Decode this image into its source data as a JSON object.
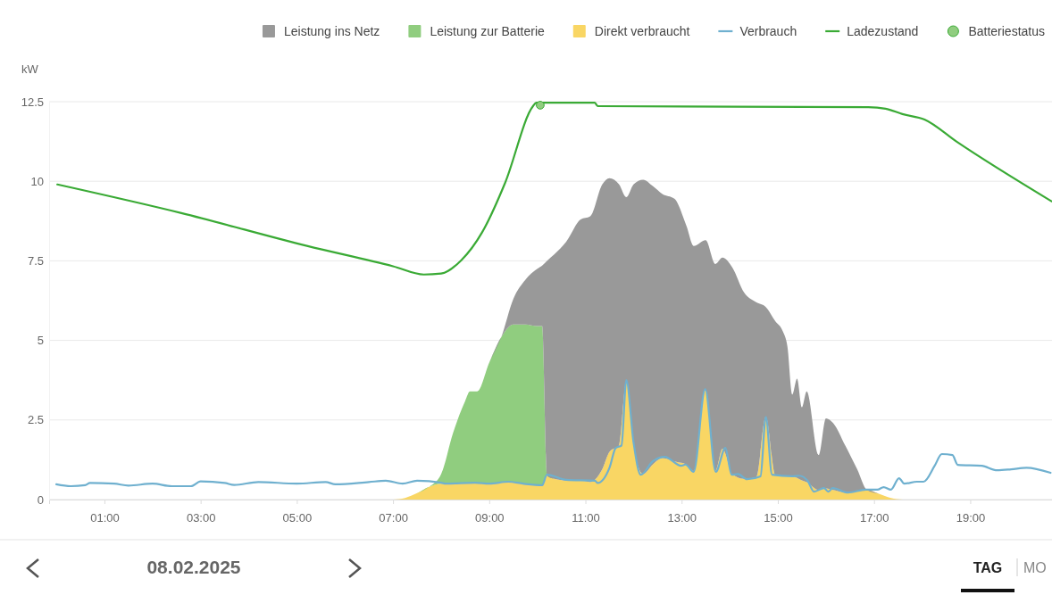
{
  "chart_data": {
    "type": "area",
    "ylabel": "kW",
    "stacked": true,
    "legend": "top right",
    "grid": "y",
    "xlim": [
      -0.15,
      20.7
    ],
    "xticks": [
      {
        "value": 1,
        "label": "01:00"
      },
      {
        "value": 3,
        "label": "03:00"
      },
      {
        "value": 5,
        "label": "05:00"
      },
      {
        "value": 7,
        "label": "07:00"
      },
      {
        "value": 9,
        "label": "09:00"
      },
      {
        "value": 11,
        "label": "11:00"
      },
      {
        "value": 13,
        "label": "13:00"
      },
      {
        "value": 15,
        "label": "15:00"
      },
      {
        "value": 17,
        "label": "17:00"
      },
      {
        "value": 19,
        "label": "19:00"
      }
    ],
    "ylim": [
      0,
      12.5
    ],
    "yticks": [
      0,
      2.5,
      5,
      7.5,
      10,
      12.5
    ],
    "x": [
      7.0,
      7.25,
      7.5,
      7.75,
      8.0,
      8.25,
      8.5,
      8.6,
      8.75,
      9.0,
      9.25,
      9.5,
      9.75,
      10.0,
      10.1,
      10.2,
      10.35,
      10.6,
      10.9,
      11.1,
      11.35,
      11.5,
      11.7,
      11.85,
      12.0,
      12.2,
      12.4,
      12.6,
      12.85,
      13.1,
      13.25,
      13.5,
      13.7,
      13.85,
      14.05,
      14.3,
      14.55,
      14.75,
      14.95,
      15.1,
      15.2,
      15.3,
      15.4,
      15.5,
      15.6,
      15.85,
      16.0,
      16.15,
      16.4,
      16.65,
      16.85,
      17.1,
      17.35,
      17.6
    ],
    "series": [
      {
        "name": "Direkt verbraucht",
        "color": "#f9d664",
        "values": [
          0,
          0.05,
          0.2,
          0.4,
          0.5,
          0.5,
          0.53,
          0.53,
          0.53,
          0.5,
          0.53,
          0.55,
          0.5,
          0.45,
          0.45,
          0.75,
          0.65,
          0.6,
          0.6,
          0.55,
          0.95,
          1.5,
          1.7,
          3.7,
          1.7,
          0.8,
          1.1,
          1.3,
          1.2,
          1.1,
          0.9,
          3.45,
          0.9,
          1.6,
          0.8,
          0.65,
          0.7,
          2.6,
          0.75,
          0.73,
          0.73,
          0.72,
          0.68,
          0.6,
          0.55,
          0.3,
          0.35,
          0.3,
          0.22,
          0.25,
          0.3,
          0.18,
          0.05,
          0
        ]
      },
      {
        "name": "Leistung zur Batterie",
        "color": "#90cd7f",
        "values": [
          0,
          0,
          0,
          0,
          0.3,
          1.6,
          2.57,
          2.87,
          2.87,
          3.8,
          4.57,
          4.95,
          5.0,
          5.0,
          5.0,
          0,
          0,
          0,
          0,
          0,
          0,
          0,
          0,
          0,
          0,
          0,
          0,
          0,
          0,
          0,
          0,
          0,
          0,
          0,
          0,
          0,
          0,
          0,
          0,
          0,
          0,
          0,
          0,
          0,
          0,
          0,
          0,
          0,
          0,
          0,
          0,
          0,
          0,
          0
        ]
      },
      {
        "name": "Leistung ins Netz",
        "color": "#999999",
        "values": [
          0,
          0,
          0,
          0,
          0,
          0,
          0,
          0,
          0,
          0,
          0,
          0.8,
          1.4,
          1.8,
          1.9,
          6.75,
          7.05,
          7.5,
          8.2,
          8.35,
          8.95,
          8.6,
          8.2,
          5.8,
          8.2,
          9.25,
          8.75,
          8.3,
          8.25,
          7.5,
          7.07,
          4.7,
          6.5,
          6.0,
          6.5,
          5.85,
          5.5,
          3.45,
          4.85,
          4.57,
          4.07,
          2.58,
          3.12,
          2.3,
          2.85,
          1.1,
          2.2,
          2.1,
          1.48,
          0.7,
          0,
          0,
          0,
          0
        ]
      },
      {
        "name": "Verbrauch",
        "type": "line",
        "color": "#6fb0cf",
        "x": [
          0.0,
          0.3,
          0.6,
          0.7,
          1.2,
          1.5,
          2.0,
          2.4,
          2.8,
          3.0,
          3.5,
          3.7,
          4.2,
          5.0,
          5.6,
          5.8,
          6.5,
          6.85,
          7.2,
          7.5,
          8.0,
          8.1,
          8.7,
          9.0,
          9.4,
          9.7,
          10.1,
          10.2,
          10.6,
          11.2,
          11.25,
          11.5,
          11.63,
          11.75,
          11.85,
          12.0,
          12.15,
          12.4,
          12.65,
          12.99,
          13.08,
          13.25,
          13.49,
          13.71,
          13.91,
          14.04,
          14.17,
          14.36,
          14.64,
          14.75,
          14.88,
          15.29,
          15.44,
          15.62,
          15.75,
          15.96,
          16.05,
          16.14,
          16.46,
          16.83,
          17.07,
          17.2,
          17.35,
          17.52,
          17.63,
          17.89,
          18.03,
          18.26,
          18.41,
          18.63,
          18.74,
          19.24,
          19.56,
          19.85,
          20.17,
          20.67
        ],
        "values": [
          0.48,
          0.42,
          0.45,
          0.52,
          0.5,
          0.44,
          0.5,
          0.42,
          0.42,
          0.57,
          0.52,
          0.46,
          0.55,
          0.5,
          0.55,
          0.48,
          0.55,
          0.59,
          0.5,
          0.59,
          0.53,
          0.5,
          0.53,
          0.5,
          0.56,
          0.5,
          0.45,
          0.78,
          0.62,
          0.59,
          0.52,
          1.0,
          1.62,
          1.7,
          3.75,
          1.8,
          0.78,
          1.2,
          1.34,
          1.06,
          1.1,
          0.87,
          3.47,
          0.87,
          1.62,
          0.78,
          0.8,
          0.64,
          0.73,
          2.6,
          0.78,
          0.73,
          0.75,
          0.59,
          0.25,
          0.36,
          0.25,
          0.36,
          0.22,
          0.31,
          0.31,
          0.39,
          0.31,
          0.67,
          0.5,
          0.56,
          0.56,
          1.06,
          1.43,
          1.4,
          1.09,
          1.06,
          0.92,
          0.95,
          1.0,
          0.84
        ]
      },
      {
        "name": "Ladezustand",
        "type": "line",
        "color": "#3aaa35",
        "x": [
          0.02,
          2.6,
          5.21,
          7.0,
          7.64,
          8.0,
          8.42,
          8.85,
          9.33,
          9.91,
          9.98,
          11.19,
          11.26,
          16.88,
          17.24,
          17.59,
          18.05,
          18.72,
          20.69
        ],
        "values": [
          9.9,
          9.0,
          7.97,
          7.33,
          7.07,
          7.1,
          7.52,
          8.39,
          9.95,
          12.36,
          12.47,
          12.47,
          12.36,
          12.33,
          12.28,
          12.11,
          11.94,
          11.24,
          9.37
        ]
      },
      {
        "name": "Batteriestatus",
        "type": "scatter",
        "color": "#90cd7f",
        "marker": "circle",
        "x": [
          10.06
        ],
        "values": [
          12.39
        ]
      }
    ],
    "annotations": [
      "08.02.2025",
      "TAG",
      "MO"
    ]
  }
}
